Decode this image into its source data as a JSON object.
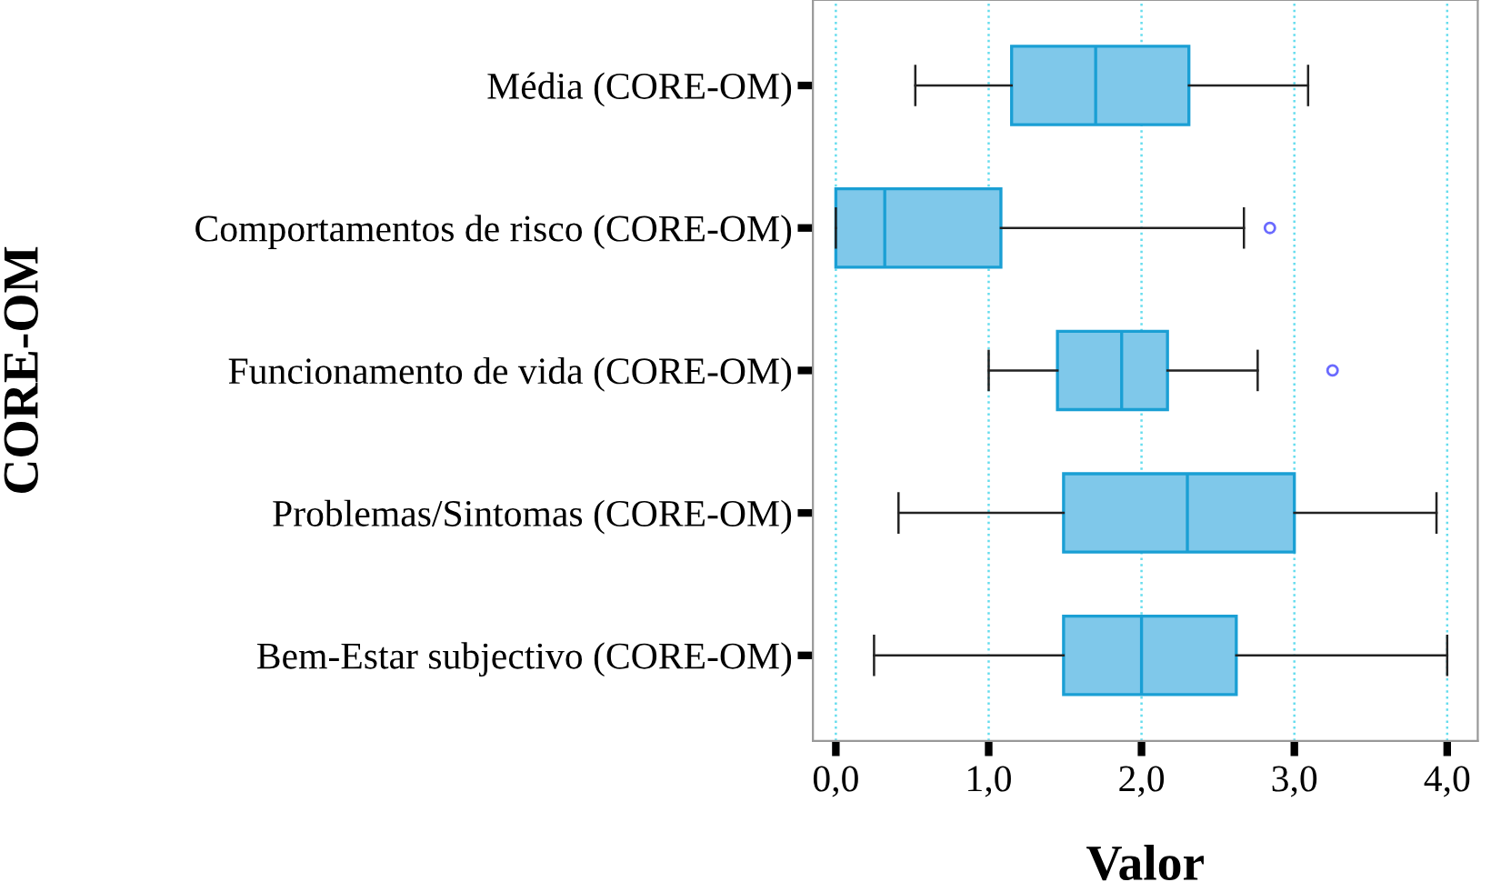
{
  "chart_data": {
    "type": "box",
    "orientation": "horizontal",
    "xlabel": "Valor",
    "ylabel": "CORE-OM",
    "categories": [
      "Média (CORE-OM)",
      "Comportamentos de risco (CORE-OM)",
      "Funcionamento de vida (CORE-OM)",
      "Problemas/Sintomas (CORE-OM)",
      "Bem-Estar subjectivo (CORE-OM)"
    ],
    "boxes": [
      {
        "low": 0.52,
        "q1": 1.15,
        "median": 1.7,
        "q3": 2.31,
        "high": 3.09
      },
      {
        "low": 0,
        "q1": 0,
        "median": 0.32,
        "q3": 1.08,
        "high": 2.67,
        "outliers": [
          2.84
        ]
      },
      {
        "low": 1.0,
        "q1": 1.45,
        "median": 1.87,
        "q3": 2.17,
        "high": 2.76,
        "outliers": [
          3.25
        ]
      },
      {
        "low": 0.41,
        "q1": 1.49,
        "median": 2.3,
        "q3": 3.0,
        "high": 3.93
      },
      {
        "low": 0.25,
        "q1": 1.49,
        "median": 2.0,
        "q3": 2.62,
        "high": 4.0
      }
    ],
    "color": "#7fc8ea",
    "xlim": [
      -0.15,
      4.2
    ],
    "xticks": [
      {
        "value": 0,
        "label": "0,0"
      },
      {
        "value": 1,
        "label": "1,0"
      },
      {
        "value": 2,
        "label": "2,0"
      },
      {
        "value": 3,
        "label": "3,0"
      },
      {
        "value": 4,
        "label": "4,0"
      }
    ],
    "grid": "x"
  }
}
